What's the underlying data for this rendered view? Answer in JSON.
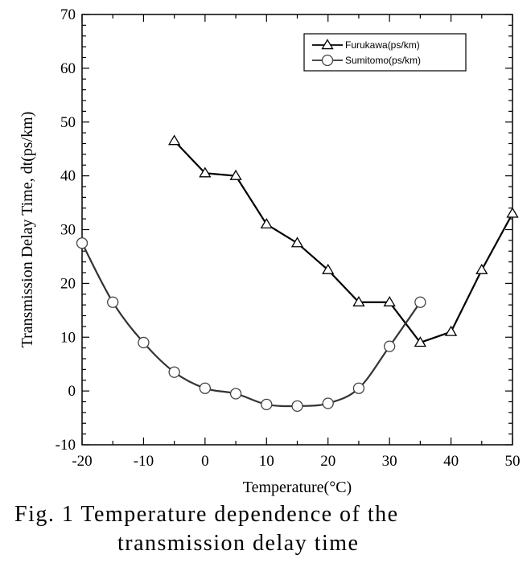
{
  "chart_data": {
    "type": "line",
    "xlabel": "Temperature(°C)",
    "ylabel": "Transmission Delay Time, dt(ps/km)",
    "xlim": [
      -20,
      50
    ],
    "ylim": [
      -10,
      70
    ],
    "xticks": [
      "-20",
      "-10",
      "0",
      "10",
      "20",
      "30",
      "40",
      "50"
    ],
    "yticks": [
      "-10",
      "0",
      "10",
      "20",
      "30",
      "40",
      "50",
      "60",
      "70"
    ],
    "legend_position": "top-right",
    "grid": false,
    "series": [
      {
        "name": "Furukawa(ps/km)",
        "marker": "triangle",
        "color": "#000000",
        "x": [
          -5,
          0,
          5,
          10,
          15,
          20,
          25,
          30,
          35,
          40,
          45,
          50
        ],
        "y": [
          46.5,
          40.5,
          40,
          31,
          27.5,
          22.5,
          16.5,
          16.5,
          9,
          11,
          22.5,
          33
        ]
      },
      {
        "name": "Sumitomo(ps/km)",
        "marker": "circle",
        "color": "#333333",
        "x": [
          -20,
          -15,
          -10,
          -5,
          0,
          5,
          10,
          15,
          20,
          25,
          30,
          35
        ],
        "y": [
          27.5,
          16.5,
          9,
          3.5,
          0.5,
          -0.5,
          -2.5,
          -2.8,
          -2.3,
          0.5,
          8.3,
          16.5
        ]
      }
    ]
  },
  "caption": {
    "line1": "Fig.  1  Temperature  dependence  of  the",
    "line2": "transmission delay time"
  }
}
